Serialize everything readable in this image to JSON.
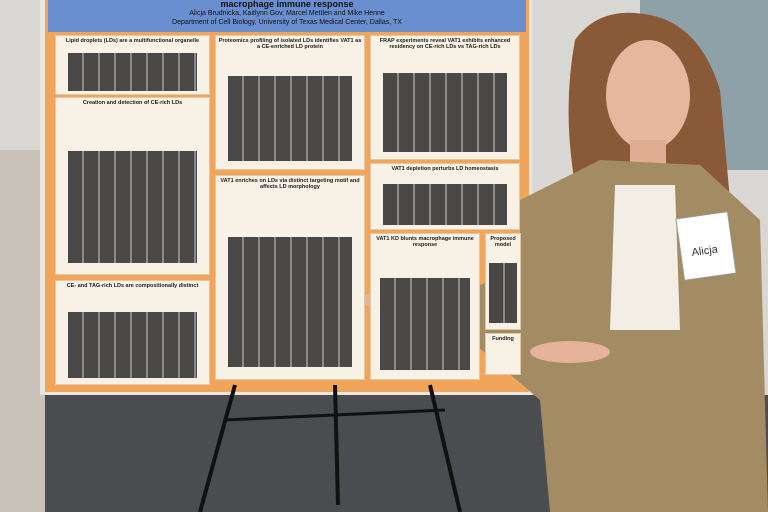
{
  "poster": {
    "title": "macrophage immune response",
    "authors": "Alicja Brudnicka, Kaitlynn Gov, Marcel Mettlen and Mike Henne",
    "affiliation": "Department of Cell Biology, University of Texas Medical Center, Dallas, TX",
    "sections": [
      {
        "title": "Lipid droplets (LDs) are a multifunctional organelle"
      },
      {
        "title": "Proteomics profiling of isolated LDs identifies VAT1 as a CE-enriched LD protein"
      },
      {
        "title": "FRAP experiments reveal VAT1 exhibits enhanced residency on CE-rich LDs vs TAG-rich LDs"
      },
      {
        "title": "Creation and detection of CE-rich LDs"
      },
      {
        "title": "VAT1 depletion perturbs LD homeostasis"
      },
      {
        "title": "VAT1 enriches on LDs via distinct targeting motif and affects LD morphology"
      },
      {
        "title": "VAT1 KD blunts macrophage immune response"
      },
      {
        "title": "Proposed model"
      },
      {
        "title": "CE- and TAG-rich LDs are compositionally distinct"
      }
    ],
    "funding": "Funding"
  },
  "name_tag": "Alicja"
}
